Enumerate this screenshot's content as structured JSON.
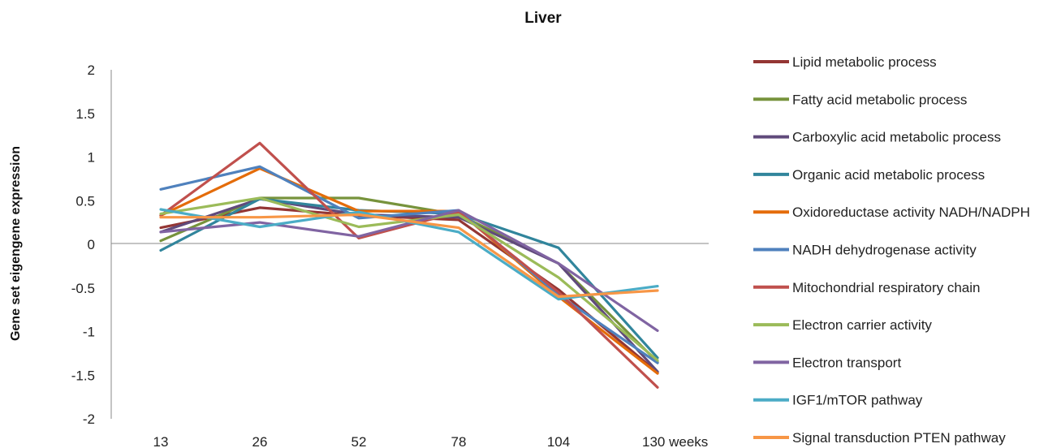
{
  "chart_data": {
    "type": "line",
    "title": "Liver",
    "ylabel": "Gene set eigengene expression",
    "xlabel": "",
    "categories": [
      "13",
      "26",
      "52",
      "78",
      "104",
      "130 weeks"
    ],
    "ylim": [
      -2,
      2
    ],
    "yticks": [
      2,
      1.5,
      1,
      0.5,
      0,
      -0.5,
      -1,
      -1.5,
      -2
    ],
    "legend_position": "right",
    "grid": false,
    "series": [
      {
        "name": "Lipid metabolic process",
        "color": "#943634",
        "values": [
          0.19,
          0.42,
          0.33,
          0.28,
          -0.52,
          -1.47
        ]
      },
      {
        "name": "Fatty acid metabolic process",
        "color": "#77933C",
        "values": [
          0.04,
          0.53,
          0.53,
          0.34,
          -0.22,
          -1.35
        ]
      },
      {
        "name": "Carboxylic acid metabolic process",
        "color": "#604A7B",
        "values": [
          0.14,
          0.52,
          0.34,
          0.31,
          -0.22,
          -1.46
        ]
      },
      {
        "name": "Organic acid metabolic process",
        "color": "#31859C",
        "values": [
          -0.07,
          0.52,
          0.39,
          0.35,
          -0.04,
          -1.3
        ]
      },
      {
        "name": "Oxidoreductase activity NADH/NADPH",
        "color": "#E46C0A",
        "values": [
          0.33,
          0.87,
          0.38,
          0.38,
          -0.6,
          -1.48
        ]
      },
      {
        "name": "NADH dehydrogenase activity",
        "color": "#4F81BD",
        "values": [
          0.63,
          0.89,
          0.3,
          0.39,
          -0.58,
          -1.36
        ]
      },
      {
        "name": "Mitochondrial respiratory chain",
        "color": "#C0504D",
        "values": [
          0.33,
          1.16,
          0.07,
          0.37,
          -0.55,
          -1.64
        ]
      },
      {
        "name": "Electron carrier activity",
        "color": "#9BBB59",
        "values": [
          0.35,
          0.53,
          0.2,
          0.34,
          -0.38,
          -1.33
        ]
      },
      {
        "name": "Electron transport",
        "color": "#8064A2",
        "values": [
          0.14,
          0.25,
          0.09,
          0.39,
          -0.22,
          -0.99
        ]
      },
      {
        "name": "IGF1/mTOR pathway",
        "color": "#4BACC6",
        "values": [
          0.4,
          0.2,
          0.37,
          0.14,
          -0.63,
          -0.48
        ]
      },
      {
        "name": "Signal transduction PTEN pathway",
        "color": "#F79646",
        "values": [
          0.31,
          0.31,
          0.34,
          0.19,
          -0.6,
          -0.53
        ]
      }
    ]
  }
}
